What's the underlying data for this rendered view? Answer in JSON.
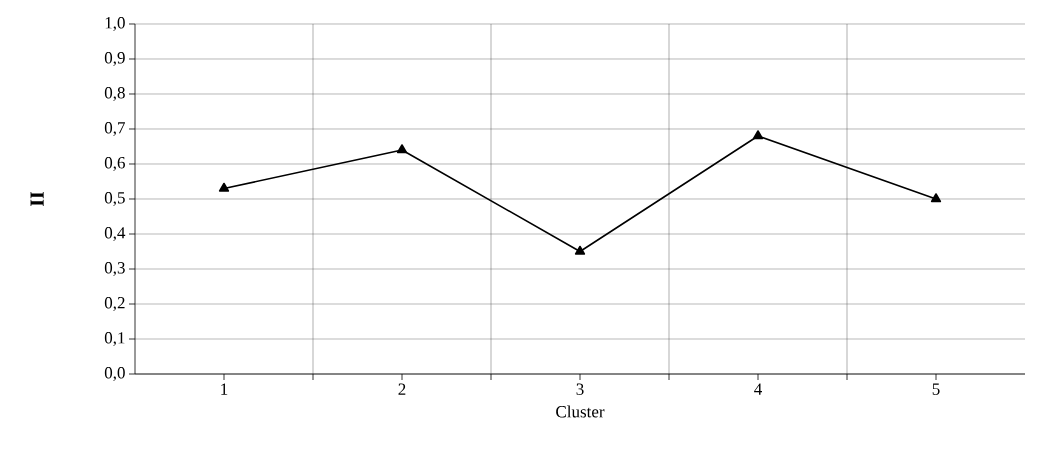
{
  "chart_data": {
    "type": "line",
    "xlabel": "Cluster",
    "ylabel": "II",
    "categories": [
      "1",
      "2",
      "3",
      "4",
      "5"
    ],
    "series": [
      {
        "color": "#000000",
        "values": [
          0.53,
          0.64,
          0.35,
          0.68,
          0.5
        ]
      }
    ],
    "ylim": [
      0,
      1
    ],
    "yticks": [
      {
        "value": 0,
        "label": "0,0"
      },
      {
        "value": 0.1,
        "label": "0,1"
      },
      {
        "value": 0.2,
        "label": "0,2"
      },
      {
        "value": 0.3,
        "label": "0,3"
      },
      {
        "value": 0.4,
        "label": "0,4"
      },
      {
        "value": 0.5,
        "label": "0,5"
      },
      {
        "value": 0.6,
        "label": "0,6"
      },
      {
        "value": 0.7,
        "label": "0,7"
      },
      {
        "value": 0.8,
        "label": "0,8"
      },
      {
        "value": 0.9,
        "label": "0,9"
      },
      {
        "value": 1,
        "label": "1,0"
      }
    ],
    "grid": true,
    "marker": "triangle",
    "line_style": "solid"
  }
}
